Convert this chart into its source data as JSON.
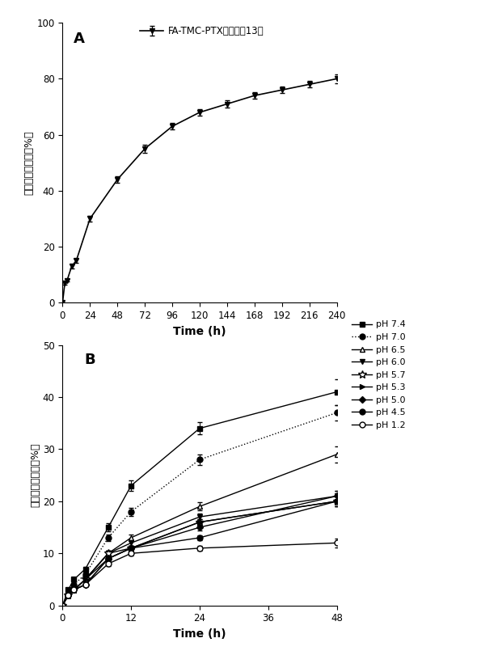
{
  "panel_A": {
    "x": [
      0,
      2,
      4,
      8,
      12,
      24,
      48,
      72,
      96,
      120,
      144,
      168,
      192,
      216,
      240
    ],
    "y": [
      0,
      7,
      8,
      13,
      15,
      30,
      44,
      55,
      63,
      68,
      71,
      74,
      76,
      78,
      80
    ],
    "yerr": [
      0,
      0.5,
      0.5,
      0.8,
      0.8,
      1.0,
      1.2,
      1.5,
      1.2,
      1.2,
      1.2,
      1.2,
      1.2,
      1.2,
      1.5
    ],
    "label": "FA-TMC-PTX（实施例13）",
    "xlabel": "Time (h)",
    "ylabel": "累积解放百分率（%）",
    "xlim": [
      0,
      240
    ],
    "ylim": [
      0,
      100
    ],
    "xticks": [
      0,
      24,
      48,
      72,
      96,
      120,
      144,
      168,
      192,
      216,
      240
    ],
    "yticks": [
      0,
      20,
      40,
      60,
      80,
      100
    ],
    "panel_label": "A"
  },
  "panel_B": {
    "series_order": [
      "pH 7.4",
      "pH 7.0",
      "pH 6.5",
      "pH 6.0",
      "pH 5.7",
      "pH 5.3",
      "pH 5.0",
      "pH 4.5",
      "pH 1.2"
    ],
    "series": {
      "pH 7.4": {
        "x": [
          0,
          1,
          2,
          4,
          8,
          12,
          24,
          48
        ],
        "y": [
          0,
          3,
          5,
          7,
          15,
          23,
          34,
          41
        ],
        "yerr": [
          0,
          0.3,
          0.3,
          0.4,
          0.8,
          1.0,
          1.2,
          2.5
        ],
        "marker": "s",
        "ls": "-",
        "mfc": "black",
        "ms": 5
      },
      "pH 7.0": {
        "x": [
          0,
          1,
          2,
          4,
          8,
          12,
          24,
          48
        ],
        "y": [
          0,
          2,
          4,
          6,
          13,
          18,
          28,
          37
        ],
        "yerr": [
          0,
          0.3,
          0.3,
          0.4,
          0.6,
          0.8,
          1.0,
          1.5
        ],
        "marker": "o",
        "ls": ":",
        "mfc": "black",
        "ms": 5
      },
      "pH 6.5": {
        "x": [
          0,
          1,
          2,
          4,
          8,
          12,
          24,
          48
        ],
        "y": [
          0,
          2,
          3,
          5,
          10,
          13,
          19,
          29
        ],
        "yerr": [
          0,
          0.2,
          0.2,
          0.3,
          0.5,
          0.6,
          0.8,
          1.5
        ],
        "marker": "^",
        "ls": "-",
        "mfc": "white",
        "ms": 5
      },
      "pH 6.0": {
        "x": [
          0,
          1,
          2,
          4,
          8,
          12,
          24,
          48
        ],
        "y": [
          0,
          2,
          3,
          5,
          10,
          12,
          17,
          21
        ],
        "yerr": [
          0,
          0.2,
          0.2,
          0.3,
          0.5,
          0.5,
          0.7,
          1.0
        ],
        "marker": "v",
        "ls": "-",
        "mfc": "black",
        "ms": 5
      },
      "pH 5.7": {
        "x": [
          0,
          1,
          2,
          4,
          8,
          12,
          24,
          48
        ],
        "y": [
          0,
          2,
          3,
          5,
          10,
          11,
          16,
          20
        ],
        "yerr": [
          0,
          0.2,
          0.2,
          0.3,
          0.5,
          0.5,
          0.6,
          1.0
        ],
        "marker": "*",
        "ls": "-",
        "mfc": "white",
        "ms": 7
      },
      "pH 5.3": {
        "x": [
          0,
          1,
          2,
          4,
          8,
          12,
          24,
          48
        ],
        "y": [
          0,
          2,
          3,
          5,
          9,
          11,
          16,
          20
        ],
        "yerr": [
          0,
          0.2,
          0.2,
          0.3,
          0.5,
          0.5,
          0.6,
          1.0
        ],
        "marker": ">",
        "ls": "-",
        "mfc": "black",
        "ms": 5
      },
      "pH 5.0": {
        "x": [
          0,
          1,
          2,
          4,
          8,
          12,
          24,
          48
        ],
        "y": [
          0,
          2,
          3,
          4,
          9,
          11,
          15,
          21
        ],
        "yerr": [
          0,
          0.2,
          0.2,
          0.3,
          0.4,
          0.5,
          0.6,
          1.0
        ],
        "marker": "D",
        "ls": "-",
        "mfc": "black",
        "ms": 4
      },
      "pH 4.5": {
        "x": [
          0,
          1,
          2,
          4,
          8,
          12,
          24,
          48
        ],
        "y": [
          0,
          2,
          3,
          4,
          9,
          11,
          13,
          20
        ],
        "yerr": [
          0,
          0.2,
          0.2,
          0.3,
          0.4,
          0.5,
          0.5,
          1.0
        ],
        "marker": "o",
        "ls": "-",
        "mfc": "black",
        "ms": 5
      },
      "pH 1.2": {
        "x": [
          0,
          1,
          2,
          4,
          8,
          12,
          24,
          48
        ],
        "y": [
          0,
          2,
          3,
          4,
          8,
          10,
          11,
          12
        ],
        "yerr": [
          0,
          0.2,
          0.2,
          0.3,
          0.4,
          0.4,
          0.5,
          0.8
        ],
        "marker": "o",
        "ls": "-",
        "mfc": "white",
        "ms": 5
      }
    },
    "xlabel": "Time (h)",
    "ylabel": "累积解放百分率（%）",
    "xlim": [
      0,
      48
    ],
    "ylim": [
      0,
      50
    ],
    "xticks": [
      0,
      12,
      24,
      36,
      48
    ],
    "yticks": [
      0,
      10,
      20,
      30,
      40,
      50
    ],
    "panel_label": "B"
  },
  "background_color": "#ffffff"
}
